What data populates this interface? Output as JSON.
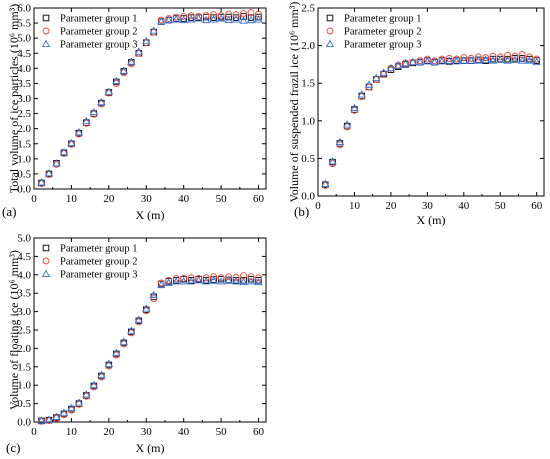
{
  "chart_data": [
    {
      "type": "scatter",
      "panel_label": "(a)",
      "xlabel": "X (m)",
      "ylabel": "Total volume of ice particles (10⁶ mm³)",
      "xlim": [
        0,
        62
      ],
      "ylim": [
        0,
        6.0
      ],
      "xticks": [
        0,
        10,
        20,
        30,
        40,
        50,
        60
      ],
      "yticks": [
        0.0,
        0.5,
        1.0,
        1.5,
        2.0,
        2.5,
        3.0,
        3.5,
        4.0,
        4.5,
        5.0,
        5.5,
        6.0
      ],
      "ytick_labels": [
        "0.0",
        "0.5",
        "1.0",
        "1.5",
        "2.0",
        "2.5",
        "3.0",
        "3.5",
        "4.0",
        "4.5",
        "5.0",
        "5.5",
        "6.0"
      ],
      "legend_position": "top-left",
      "x": [
        2,
        4,
        6,
        8,
        10,
        12,
        14,
        16,
        18,
        20,
        22,
        24,
        26,
        28,
        30,
        32,
        34,
        36,
        38,
        40,
        42,
        44,
        46,
        48,
        50,
        52,
        54,
        56,
        58,
        60
      ],
      "series": [
        {
          "name": "Parameter group 1",
          "marker": "square",
          "color": "#000000",
          "values": [
            0.2,
            0.5,
            0.85,
            1.2,
            1.5,
            1.85,
            2.2,
            2.5,
            2.85,
            3.2,
            3.55,
            3.9,
            4.2,
            4.5,
            4.85,
            5.2,
            5.55,
            5.6,
            5.65,
            5.65,
            5.68,
            5.68,
            5.7,
            5.68,
            5.7,
            5.7,
            5.68,
            5.72,
            5.68,
            5.7
          ]
        },
        {
          "name": "Parameter group 2",
          "marker": "circle",
          "color": "#e8493f",
          "values": [
            0.18,
            0.48,
            0.82,
            1.18,
            1.48,
            1.82,
            2.18,
            2.48,
            2.82,
            3.18,
            3.5,
            3.85,
            4.15,
            4.5,
            4.85,
            5.2,
            5.6,
            5.65,
            5.7,
            5.72,
            5.75,
            5.72,
            5.75,
            5.78,
            5.75,
            5.8,
            5.78,
            5.82,
            5.85,
            5.8
          ]
        },
        {
          "name": "Parameter group 3",
          "marker": "triangle",
          "color": "#3a6fd8",
          "values": [
            0.22,
            0.52,
            0.85,
            1.22,
            1.52,
            1.88,
            2.25,
            2.55,
            2.88,
            3.22,
            3.58,
            3.92,
            4.22,
            4.55,
            4.9,
            5.25,
            5.55,
            5.6,
            5.62,
            5.6,
            5.62,
            5.65,
            5.6,
            5.62,
            5.65,
            5.6,
            5.62,
            5.58,
            5.6,
            5.62
          ]
        }
      ]
    },
    {
      "type": "scatter",
      "panel_label": "(b)",
      "xlabel": "X (m)",
      "ylabel": "Volume of suspended frazil ice (10⁶ mm³)",
      "xlim": [
        0,
        62
      ],
      "ylim": [
        0,
        2.5
      ],
      "xticks": [
        0,
        10,
        20,
        30,
        40,
        50,
        60
      ],
      "yticks": [
        0.0,
        0.5,
        1.0,
        1.5,
        2.0,
        2.5
      ],
      "ytick_labels": [
        "0.0",
        "0.5",
        "1.0",
        "1.5",
        "2.0",
        "2.5"
      ],
      "legend_position": "top-left",
      "x": [
        2,
        4,
        6,
        8,
        10,
        12,
        14,
        16,
        18,
        20,
        22,
        24,
        26,
        28,
        30,
        32,
        34,
        36,
        38,
        40,
        42,
        44,
        46,
        48,
        50,
        52,
        54,
        56,
        58,
        60
      ],
      "series": [
        {
          "name": "Parameter group 1",
          "marker": "square",
          "color": "#000000",
          "values": [
            0.15,
            0.45,
            0.7,
            0.93,
            1.15,
            1.33,
            1.45,
            1.55,
            1.62,
            1.68,
            1.72,
            1.75,
            1.77,
            1.78,
            1.8,
            1.78,
            1.8,
            1.79,
            1.8,
            1.8,
            1.8,
            1.81,
            1.8,
            1.82,
            1.82,
            1.82,
            1.83,
            1.83,
            1.82,
            1.8
          ]
        },
        {
          "name": "Parameter group 2",
          "marker": "circle",
          "color": "#e8493f",
          "values": [
            0.14,
            0.43,
            0.68,
            0.92,
            1.14,
            1.32,
            1.45,
            1.55,
            1.63,
            1.7,
            1.74,
            1.77,
            1.78,
            1.8,
            1.82,
            1.8,
            1.82,
            1.83,
            1.82,
            1.84,
            1.83,
            1.85,
            1.84,
            1.86,
            1.85,
            1.87,
            1.86,
            1.88,
            1.85,
            1.82
          ]
        },
        {
          "name": "Parameter group 3",
          "marker": "triangle",
          "color": "#3a6fd8",
          "values": [
            0.16,
            0.46,
            0.72,
            0.95,
            1.17,
            1.35,
            1.48,
            1.57,
            1.64,
            1.7,
            1.73,
            1.76,
            1.78,
            1.78,
            1.79,
            1.78,
            1.79,
            1.8,
            1.79,
            1.8,
            1.8,
            1.8,
            1.81,
            1.8,
            1.81,
            1.8,
            1.81,
            1.8,
            1.8,
            1.78
          ]
        }
      ]
    },
    {
      "type": "scatter",
      "panel_label": "(c)",
      "xlabel": "X (m)",
      "ylabel": "Volume of floating ice (10⁶ mm³)",
      "xlim": [
        0,
        62
      ],
      "ylim": [
        0,
        5.0
      ],
      "xticks": [
        0,
        10,
        20,
        30,
        40,
        50,
        60
      ],
      "yticks": [
        0.0,
        0.5,
        1.0,
        1.5,
        2.0,
        2.5,
        3.0,
        3.5,
        4.0,
        4.5,
        5.0
      ],
      "ytick_labels": [
        "0.0",
        "0.5",
        "1.0",
        "1.5",
        "2.0",
        "2.5",
        "3.0",
        "3.5",
        "4.0",
        "4.5",
        "5.0"
      ],
      "legend_position": "top-left",
      "x": [
        2,
        4,
        6,
        8,
        10,
        12,
        14,
        16,
        18,
        20,
        22,
        24,
        26,
        28,
        30,
        32,
        34,
        36,
        38,
        40,
        42,
        44,
        46,
        48,
        50,
        52,
        54,
        56,
        58,
        60
      ],
      "series": [
        {
          "name": "Parameter group 1",
          "marker": "square",
          "color": "#000000",
          "values": [
            0.03,
            0.05,
            0.12,
            0.22,
            0.35,
            0.5,
            0.72,
            0.98,
            1.25,
            1.55,
            1.85,
            2.15,
            2.45,
            2.75,
            3.05,
            3.4,
            3.75,
            3.82,
            3.85,
            3.88,
            3.85,
            3.88,
            3.85,
            3.87,
            3.88,
            3.86,
            3.85,
            3.85,
            3.88,
            3.85
          ]
        },
        {
          "name": "Parameter group 2",
          "marker": "circle",
          "color": "#e8493f",
          "values": [
            0.02,
            0.04,
            0.1,
            0.2,
            0.32,
            0.48,
            0.7,
            0.95,
            1.22,
            1.52,
            1.82,
            2.12,
            2.42,
            2.72,
            3.02,
            3.35,
            3.78,
            3.85,
            3.9,
            3.9,
            3.92,
            3.9,
            3.92,
            3.95,
            3.92,
            3.95,
            3.93,
            3.98,
            3.95,
            3.92
          ]
        },
        {
          "name": "Parameter group 3",
          "marker": "triangle",
          "color": "#3a6fd8",
          "values": [
            0.04,
            0.06,
            0.14,
            0.25,
            0.38,
            0.53,
            0.75,
            1.0,
            1.28,
            1.58,
            1.88,
            2.18,
            2.48,
            2.78,
            3.08,
            3.45,
            3.72,
            3.78,
            3.82,
            3.82,
            3.82,
            3.85,
            3.82,
            3.84,
            3.82,
            3.84,
            3.82,
            3.8,
            3.82,
            3.8
          ]
        }
      ]
    }
  ]
}
